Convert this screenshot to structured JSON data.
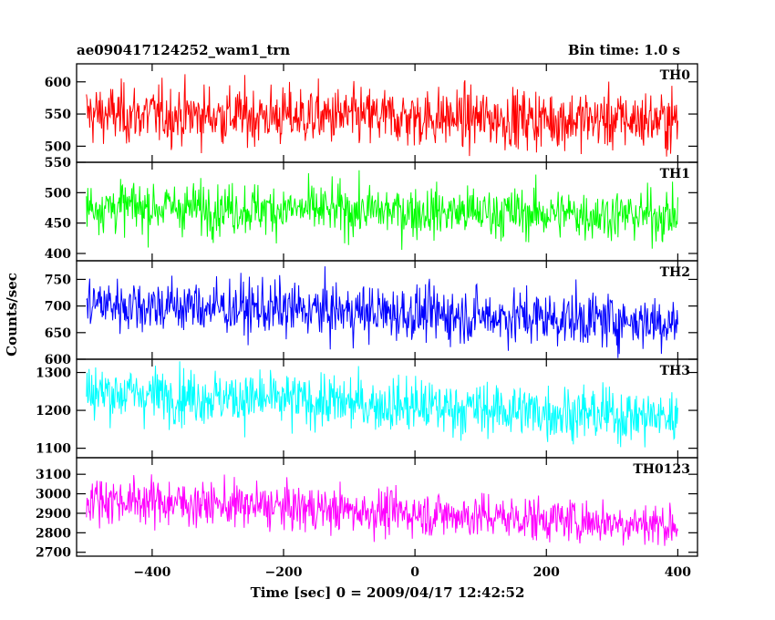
{
  "header": {
    "title": "ae090417124252_wam1_trn",
    "bin_time": "Bin time: 1.0 s"
  },
  "chart_data": {
    "type": "line",
    "xlabel": "Time [sec] 0 = 2009/04/17 12:42:52",
    "ylabel": "Counts/sec",
    "xlim": [
      -515,
      430
    ],
    "xticks": [
      -400,
      -200,
      0,
      200,
      400
    ],
    "xtick_labels": [
      "−400",
      "−200",
      "0",
      "200",
      "400"
    ],
    "bin_seconds": 1.0,
    "x_range_data": [
      -500,
      400
    ],
    "panels": [
      {
        "name": "TH0",
        "color": "#ff0000",
        "ylim": [
          475,
          628
        ],
        "yticks": [
          500,
          550,
          600
        ],
        "ytick_labels": [
          "500",
          "550",
          "600"
        ],
        "mean_start": 550,
        "mean_end": 540,
        "noise_sd": 23
      },
      {
        "name": "TH1",
        "color": "#00ff00",
        "ylim": [
          388,
          550
        ],
        "yticks": [
          400,
          450,
          500,
          550
        ],
        "ytick_labels": [
          "400",
          "450",
          "500",
          "550"
        ],
        "mean_start": 478,
        "mean_end": 462,
        "noise_sd": 21
      },
      {
        "name": "TH2",
        "color": "#0000ff",
        "ylim": [
          600,
          785
        ],
        "yticks": [
          600,
          650,
          700,
          750
        ],
        "ytick_labels": [
          "600",
          "650",
          "700",
          "750"
        ],
        "mean_start": 705,
        "mean_end": 670,
        "noise_sd": 26
      },
      {
        "name": "TH3",
        "color": "#00ffff",
        "ylim": [
          1075,
          1335
        ],
        "yticks": [
          1100,
          1200,
          1300
        ],
        "ytick_labels": [
          "1100",
          "1200",
          "1300"
        ],
        "mean_start": 1250,
        "mean_end": 1180,
        "noise_sd": 36
      },
      {
        "name": "TH0123",
        "color": "#ff00ff",
        "ylim": [
          2680,
          3185
        ],
        "yticks": [
          2700,
          2800,
          2900,
          3000,
          3100
        ],
        "ytick_labels": [
          "2700",
          "2800",
          "2900",
          "3000",
          "3100"
        ],
        "mean_start": 2975,
        "mean_end": 2840,
        "noise_sd": 58
      }
    ]
  }
}
